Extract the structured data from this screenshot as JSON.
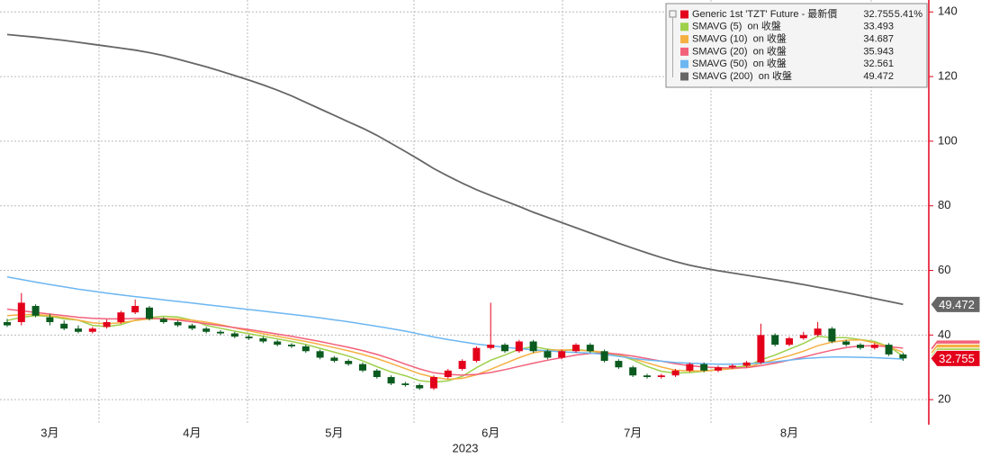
{
  "chart_data": {
    "type": "candlestick",
    "x_label": "2023",
    "categories": [
      null,
      null,
      null,
      "3月",
      null,
      null,
      null,
      null,
      null,
      null,
      null,
      null,
      null,
      "4月",
      null,
      null,
      null,
      null,
      null,
      null,
      null,
      null,
      null,
      "5月",
      null,
      null,
      null,
      null,
      null,
      null,
      null,
      null,
      null,
      null,
      "6月",
      null,
      null,
      null,
      null,
      null,
      null,
      null,
      null,
      null,
      "7月",
      null,
      null,
      null,
      null,
      null,
      null,
      null,
      null,
      null,
      null,
      "8月",
      null,
      null,
      null,
      null,
      null,
      null,
      null,
      null
    ],
    "candles": {
      "name": "Generic 1st 'TZT' Future - 最新價",
      "change_label": "5.41%",
      "up_color": "#e3001b",
      "down_color": "#0b5a1f",
      "open": [
        44,
        44,
        49,
        45.5,
        43.5,
        42,
        41,
        42.5,
        44,
        47,
        48.5,
        45,
        44,
        43,
        42,
        41,
        40.5,
        39.5,
        39,
        38,
        37,
        36.5,
        35,
        33,
        32,
        31,
        29,
        27,
        25,
        24.5,
        23.5,
        27,
        29.5,
        32,
        36,
        37,
        35,
        38,
        35,
        33,
        35,
        37,
        35,
        32,
        30,
        27.5,
        27,
        27.5,
        29,
        31,
        29,
        30,
        30.5,
        31.5,
        40,
        37,
        39,
        40,
        42,
        38,
        37,
        36,
        37,
        34
      ],
      "high": [
        45,
        53,
        49.5,
        46.5,
        44.5,
        43,
        42.5,
        44.8,
        47.5,
        51,
        49,
        45.5,
        44.5,
        43.5,
        42.5,
        41.5,
        41,
        40,
        39.5,
        38.5,
        37.5,
        37,
        35.5,
        33.5,
        32.5,
        31.5,
        29.5,
        27.5,
        25.5,
        25,
        27.5,
        29.5,
        32.5,
        36.5,
        50,
        37.5,
        38.5,
        38.5,
        35.5,
        35.5,
        37.5,
        37.5,
        35.5,
        32.5,
        30.5,
        28,
        28,
        29.5,
        31.5,
        31.5,
        30.5,
        31,
        32,
        43.5,
        40.5,
        39.5,
        41,
        44,
        42.5,
        38.5,
        37.5,
        37.5,
        37.5,
        34.5
      ],
      "low": [
        42.5,
        43,
        45.5,
        43,
        41.5,
        40.5,
        40.5,
        42,
        43.5,
        46.5,
        44.5,
        43.5,
        42.5,
        41.5,
        40.5,
        40,
        39,
        38.5,
        37.5,
        36.5,
        36,
        34.5,
        32.5,
        31.5,
        30.5,
        28.5,
        26.5,
        24.5,
        24,
        23,
        23,
        26.5,
        29,
        31.5,
        35.5,
        34.5,
        34.5,
        34.5,
        32.5,
        32.5,
        34.5,
        34.5,
        31.5,
        29.5,
        27,
        26.5,
        26.5,
        27,
        28.5,
        28.5,
        28.5,
        29.5,
        30,
        31,
        36.5,
        36.5,
        38.5,
        39.5,
        37.5,
        36.5,
        35.5,
        35.5,
        33.5,
        32
      ],
      "close": [
        43,
        50,
        46,
        44,
        42,
        41,
        42,
        44,
        47,
        49,
        45,
        44,
        43,
        42,
        41,
        40.5,
        39.5,
        39,
        38,
        37,
        36.5,
        35,
        33,
        32,
        31,
        29,
        27,
        25,
        24.5,
        23.5,
        27,
        29,
        32,
        36,
        37,
        35,
        38,
        35,
        33,
        35,
        37,
        35,
        32,
        30,
        27.5,
        27,
        27.5,
        29,
        31,
        29,
        30,
        30.5,
        31.5,
        40,
        37,
        39,
        40,
        42,
        38,
        37,
        36,
        37,
        34,
        32.755
      ]
    },
    "series": [
      {
        "name": "SMAVG (5)  on 收盤",
        "color": "#9ed04a",
        "values": [
          44.5,
          45.5,
          46,
          45.8,
          45,
          44.6,
          43,
          42.6,
          43.2,
          44.6,
          45.4,
          45.8,
          45.6,
          44.6,
          43,
          42.1,
          41.2,
          40.4,
          39.6,
          38.8,
          38,
          37.1,
          35.9,
          34.7,
          33.5,
          32,
          30.2,
          28.6,
          27.4,
          25.9,
          25.4,
          25.8,
          27.2,
          29.9,
          32.2,
          33.8,
          35.6,
          36.4,
          35.6,
          35.2,
          35.6,
          35,
          34.4,
          33.8,
          32.3,
          30.3,
          28.8,
          28.2,
          28.4,
          28.8,
          29.4,
          30,
          30.4,
          32.3,
          33.8,
          35.6,
          37.4,
          39.6,
          39.2,
          39.2,
          38.6,
          38,
          36.4,
          33.493
        ]
      },
      {
        "name": "SMAVG (10)  on 收盤",
        "color": "#f5b042",
        "values": [
          46,
          46.3,
          46.4,
          46,
          45.4,
          44.6,
          43.8,
          43.5,
          43.8,
          44.5,
          45,
          45.1,
          45,
          44.6,
          44,
          43.2,
          42.2,
          41.3,
          40.4,
          39.6,
          38.8,
          38,
          37.1,
          36.1,
          35.1,
          34,
          32.7,
          31.2,
          29.6,
          28,
          26.9,
          26.3,
          26.6,
          27.7,
          29.4,
          31.2,
          33,
          34.5,
          35.3,
          35.4,
          35.3,
          35.1,
          34.7,
          33.9,
          32.7,
          31.4,
          30.1,
          29.1,
          28.9,
          28.9,
          29.2,
          29.6,
          30,
          31.2,
          32.4,
          33.6,
          35,
          36.7,
          37.8,
          38.4,
          38.5,
          37.6,
          36.3,
          34.687
        ]
      },
      {
        "name": "SMAVG (20)  on 收盤",
        "color": "#f2607a",
        "values": [
          48,
          47.5,
          47,
          46.5,
          46,
          45.5,
          45.2,
          45,
          45,
          45.1,
          45.2,
          45,
          44.6,
          44.1,
          43.5,
          42.9,
          42.3,
          41.7,
          41,
          40.3,
          39.6,
          38.8,
          38,
          37.1,
          36.2,
          35.2,
          34,
          32.6,
          31,
          29.5,
          28.3,
          27.8,
          27.6,
          27.8,
          28.4,
          29.3,
          30.3,
          31.3,
          32.2,
          33,
          33.8,
          34.3,
          34.4,
          34.1,
          33.5,
          32.7,
          31.9,
          31.1,
          30.5,
          30.1,
          29.9,
          29.8,
          29.9,
          30.5,
          31.3,
          32.2,
          33.2,
          34.3,
          35.3,
          36.1,
          36.6,
          36.7,
          36.4,
          35.943
        ]
      },
      {
        "name": "SMAVG (50)  on 收盤",
        "color": "#6cb6f2",
        "values": [
          58,
          57.2,
          56.4,
          55.6,
          54.9,
          54.2,
          53.6,
          53,
          52.4,
          51.9,
          51.4,
          50.9,
          50.4,
          49.9,
          49.4,
          48.9,
          48.4,
          47.9,
          47.4,
          46.9,
          46.4,
          45.9,
          45.3,
          44.7,
          44.1,
          43.4,
          42.7,
          42,
          41.2,
          40.3,
          39.4,
          38.6,
          37.9,
          37.2,
          36.7,
          36.2,
          35.8,
          35.4,
          35.1,
          34.8,
          34.6,
          34.4,
          34,
          33.4,
          32.8,
          32.3,
          31.9,
          31.5,
          31.3,
          31.1,
          31,
          31,
          31.1,
          31.3,
          31.7,
          32.2,
          32.7,
          33,
          33.2,
          33.2,
          33.1,
          33,
          32.8,
          32.561
        ]
      },
      {
        "name": "SMAVG (200)  on 收盤",
        "color": "#666666",
        "values": [
          133,
          132.6,
          132.2,
          131.7,
          131.2,
          130.6,
          130,
          129.4,
          128.8,
          128.2,
          127.4,
          126.5,
          125.4,
          124.2,
          123,
          121.7,
          120.3,
          118.9,
          117.4,
          115.8,
          114,
          112,
          110,
          108,
          106,
          104,
          101.8,
          99.3,
          96.8,
          94.2,
          91.5,
          89.2,
          87,
          85,
          83.2,
          81.5,
          79.8,
          78,
          76.4,
          74.8,
          73.2,
          71.6,
          70,
          68.4,
          66.9,
          65.4,
          64,
          62.7,
          61.6,
          60.7,
          59.9,
          59.2,
          58.5,
          57.8,
          57.1,
          56.4,
          55.6,
          54.8,
          54,
          53.1,
          52.2,
          51.3,
          50.4,
          49.472
        ]
      }
    ],
    "ylim": [
      12.8,
      143.7
    ],
    "yticks": [
      20,
      40,
      60,
      80,
      100,
      120,
      140
    ],
    "grid": true
  }
}
